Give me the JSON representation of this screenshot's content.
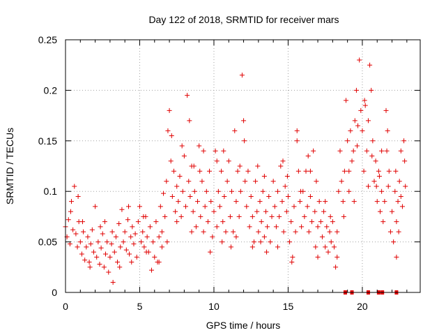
{
  "chart_data": {
    "type": "scatter",
    "title": "Day 122 of 2018, SRMTID for receiver mars",
    "xlabel": "GPS time / hours",
    "ylabel": "SRMTID / TECUs",
    "xlim": [
      0,
      23.9
    ],
    "ylim": [
      0,
      0.25
    ],
    "grid": true,
    "marker": "+",
    "color": "#e00000",
    "x_ticks": [
      0,
      5,
      10,
      15,
      20
    ],
    "y_ticks": [
      0,
      0.05,
      0.1,
      0.15,
      0.2,
      0.25
    ],
    "x_tick_labels": [
      "0",
      "5",
      "10",
      "15",
      "20"
    ],
    "y_tick_labels": [
      "0",
      "0.05",
      "0.1",
      "0.15",
      "0.2",
      "0.25"
    ],
    "series": [
      {
        "name": "SRMTID",
        "points": [
          [
            0.0,
            0.065
          ],
          [
            0.1,
            0.055
          ],
          [
            0.2,
            0.072
          ],
          [
            0.3,
            0.048
          ],
          [
            0.4,
            0.09
          ],
          [
            0.5,
            0.062
          ],
          [
            0.6,
            0.105
          ],
          [
            0.7,
            0.058
          ],
          [
            0.8,
            0.045
          ],
          [
            0.9,
            0.07
          ],
          [
            1.0,
            0.05
          ],
          [
            1.1,
            0.038
          ],
          [
            1.2,
            0.06
          ],
          [
            1.3,
            0.032
          ],
          [
            1.4,
            0.045
          ],
          [
            1.5,
            0.055
          ],
          [
            1.6,
            0.03
          ],
          [
            1.7,
            0.048
          ],
          [
            1.8,
            0.062
          ],
          [
            1.9,
            0.04
          ],
          [
            2.0,
            0.085
          ],
          [
            2.1,
            0.035
          ],
          [
            2.2,
            0.05
          ],
          [
            2.3,
            0.028
          ],
          [
            2.4,
            0.044
          ],
          [
            2.5,
            0.058
          ],
          [
            2.6,
            0.025
          ],
          [
            2.7,
            0.038
          ],
          [
            2.8,
            0.05
          ],
          [
            2.9,
            0.02
          ],
          [
            3.0,
            0.035
          ],
          [
            3.1,
            0.048
          ],
          [
            3.2,
            0.01
          ],
          [
            3.3,
            0.04
          ],
          [
            3.4,
            0.055
          ],
          [
            3.5,
            0.03
          ],
          [
            3.6,
            0.068
          ],
          [
            3.7,
            0.045
          ],
          [
            3.8,
            0.082
          ],
          [
            3.9,
            0.05
          ],
          [
            4.0,
            0.06
          ],
          [
            4.1,
            0.042
          ],
          [
            4.2,
            0.072
          ],
          [
            4.3,
            0.038
          ],
          [
            4.4,
            0.055
          ],
          [
            4.5,
            0.065
          ],
          [
            4.6,
            0.048
          ],
          [
            4.7,
            0.058
          ],
          [
            4.8,
            0.035
          ],
          [
            4.9,
            0.07
          ],
          [
            5.0,
            0.085
          ],
          [
            5.1,
            0.05
          ],
          [
            5.2,
            0.06
          ],
          [
            5.3,
            0.045
          ],
          [
            5.4,
            0.075
          ],
          [
            5.5,
            0.055
          ],
          [
            5.6,
            0.04
          ],
          [
            5.7,
            0.065
          ],
          [
            5.8,
            0.022
          ],
          [
            5.9,
            0.05
          ],
          [
            6.0,
            0.035
          ],
          [
            6.1,
            0.07
          ],
          [
            6.2,
            0.03
          ],
          [
            6.3,
            0.055
          ],
          [
            6.4,
            0.085
          ],
          [
            6.5,
            0.06
          ],
          [
            6.6,
            0.098
          ],
          [
            6.7,
            0.075
          ],
          [
            6.8,
            0.11
          ],
          [
            6.9,
            0.16
          ],
          [
            7.0,
            0.18
          ],
          [
            7.1,
            0.13
          ],
          [
            7.2,
            0.095
          ],
          [
            7.3,
            0.12
          ],
          [
            7.4,
            0.08
          ],
          [
            7.5,
            0.105
          ],
          [
            7.6,
            0.09
          ],
          [
            7.7,
            0.115
          ],
          [
            7.8,
            0.075
          ],
          [
            7.9,
            0.1
          ],
          [
            8.0,
            0.135
          ],
          [
            8.1,
            0.085
          ],
          [
            8.2,
            0.195
          ],
          [
            8.3,
            0.11
          ],
          [
            8.4,
            0.095
          ],
          [
            8.5,
            0.125
          ],
          [
            8.6,
            0.08
          ],
          [
            8.7,
            0.1
          ],
          [
            8.8,
            0.065
          ],
          [
            8.9,
            0.09
          ],
          [
            9.0,
            0.145
          ],
          [
            9.1,
            0.075
          ],
          [
            9.2,
            0.11
          ],
          [
            9.3,
            0.06
          ],
          [
            9.4,
            0.085
          ],
          [
            9.5,
            0.1
          ],
          [
            9.6,
            0.07
          ],
          [
            9.7,
            0.12
          ],
          [
            9.8,
            0.09
          ],
          [
            9.9,
            0.055
          ],
          [
            10.0,
            0.08
          ],
          [
            10.1,
            0.14
          ],
          [
            10.2,
            0.065
          ],
          [
            10.3,
            0.1
          ],
          [
            10.4,
            0.085
          ],
          [
            10.5,
            0.12
          ],
          [
            10.6,
            0.07
          ],
          [
            10.7,
            0.095
          ],
          [
            10.8,
            0.06
          ],
          [
            10.9,
            0.11
          ],
          [
            11.0,
            0.13
          ],
          [
            11.1,
            0.075
          ],
          [
            11.2,
            0.1
          ],
          [
            11.3,
            0.06
          ],
          [
            11.4,
            0.16
          ],
          [
            11.5,
            0.09
          ],
          [
            11.6,
            0.12
          ],
          [
            11.7,
            0.075
          ],
          [
            11.8,
            0.1
          ],
          [
            11.9,
            0.215
          ],
          [
            12.0,
            0.17
          ],
          [
            12.1,
            0.11
          ],
          [
            12.2,
            0.085
          ],
          [
            12.3,
            0.12
          ],
          [
            12.4,
            0.065
          ],
          [
            12.5,
            0.095
          ],
          [
            12.6,
            0.075
          ],
          [
            12.7,
            0.05
          ],
          [
            12.8,
            0.11
          ],
          [
            12.9,
            0.08
          ],
          [
            13.0,
            0.06
          ],
          [
            13.1,
            0.09
          ],
          [
            13.2,
            0.07
          ],
          [
            13.3,
            0.1
          ],
          [
            13.4,
            0.055
          ],
          [
            13.5,
            0.08
          ],
          [
            13.6,
            0.065
          ],
          [
            13.7,
            0.095
          ],
          [
            13.8,
            0.05
          ],
          [
            13.9,
            0.075
          ],
          [
            14.0,
            0.11
          ],
          [
            14.1,
            0.085
          ],
          [
            14.2,
            0.065
          ],
          [
            14.3,
            0.1
          ],
          [
            14.4,
            0.075
          ],
          [
            14.5,
            0.125
          ],
          [
            14.6,
            0.09
          ],
          [
            14.7,
            0.06
          ],
          [
            14.8,
            0.105
          ],
          [
            14.9,
            0.08
          ],
          [
            15.0,
            0.095
          ],
          [
            15.1,
            0.05
          ],
          [
            15.2,
            0.07
          ],
          [
            15.3,
            0.035
          ],
          [
            15.4,
            0.085
          ],
          [
            15.5,
            0.06
          ],
          [
            15.6,
            0.16
          ],
          [
            15.7,
            0.12
          ],
          [
            15.8,
            0.09
          ],
          [
            15.9,
            0.065
          ],
          [
            16.0,
            0.1
          ],
          [
            16.1,
            0.075
          ],
          [
            16.2,
            0.12
          ],
          [
            16.3,
            0.085
          ],
          [
            16.4,
            0.06
          ],
          [
            16.5,
            0.095
          ],
          [
            16.6,
            0.07
          ],
          [
            16.7,
            0.14
          ],
          [
            16.8,
            0.08
          ],
          [
            16.9,
            0.11
          ],
          [
            17.0,
            0.065
          ],
          [
            17.1,
            0.09
          ],
          [
            17.2,
            0.07
          ],
          [
            17.3,
            0.055
          ],
          [
            17.4,
            0.08
          ],
          [
            17.5,
            0.045
          ],
          [
            17.6,
            0.065
          ],
          [
            17.7,
            0.04
          ],
          [
            17.8,
            0.06
          ],
          [
            17.9,
            0.05
          ],
          [
            18.0,
            0.07
          ],
          [
            18.1,
            0.045
          ],
          [
            18.2,
            0.025
          ],
          [
            18.3,
            0.06
          ],
          [
            18.4,
            0.1
          ],
          [
            18.5,
            0.14
          ],
          [
            18.6,
            0.11
          ],
          [
            18.7,
            0.09
          ],
          [
            18.8,
            0.12
          ],
          [
            18.9,
            0.19
          ],
          [
            19.0,
            0.15
          ],
          [
            19.1,
            0.12
          ],
          [
            19.2,
            0.16
          ],
          [
            19.3,
            0.13
          ],
          [
            19.4,
            0.14
          ],
          [
            19.5,
            0.17
          ],
          [
            19.6,
            0.2
          ],
          [
            19.7,
            0.165
          ],
          [
            19.8,
            0.23
          ],
          [
            19.9,
            0.18
          ],
          [
            20.0,
            0.16
          ],
          [
            20.1,
            0.12
          ],
          [
            20.2,
            0.185
          ],
          [
            20.3,
            0.14
          ],
          [
            20.4,
            0.17
          ],
          [
            20.5,
            0.225
          ],
          [
            20.6,
            0.2
          ],
          [
            20.7,
            0.15
          ],
          [
            20.8,
            0.11
          ],
          [
            20.9,
            0.13
          ],
          [
            21.0,
            0.09
          ],
          [
            21.1,
            0.12
          ],
          [
            21.2,
            0.08
          ],
          [
            21.3,
            0.1
          ],
          [
            21.4,
            0.07
          ],
          [
            21.5,
            0.09
          ],
          [
            21.6,
            0.18
          ],
          [
            21.7,
            0.16
          ],
          [
            21.8,
            0.12
          ],
          [
            21.9,
            0.06
          ],
          [
            22.0,
            0.08
          ],
          [
            22.1,
            0.05
          ],
          [
            22.2,
            0.1
          ],
          [
            22.3,
            0.07
          ],
          [
            22.4,
            0.09
          ],
          [
            22.5,
            0.11
          ],
          [
            22.6,
            0.14
          ],
          [
            22.7,
            0.085
          ],
          [
            22.8,
            0.15
          ],
          [
            22.9,
            0.105
          ],
          [
            6.5,
            0.045
          ],
          [
            6.3,
            0.03
          ],
          [
            7.5,
            0.07
          ],
          [
            8.5,
            0.06
          ],
          [
            9.3,
            0.14
          ],
          [
            10.2,
            0.13
          ],
          [
            11.5,
            0.055
          ],
          [
            12.6,
            0.045
          ],
          [
            13.4,
            0.115
          ],
          [
            14.3,
            0.045
          ],
          [
            15.6,
            0.15
          ],
          [
            16.5,
            0.12
          ],
          [
            17.0,
            0.035
          ],
          [
            17.5,
            0.09
          ],
          [
            18.3,
            0.035
          ],
          [
            19.1,
            0.1
          ],
          [
            20.4,
            0.105
          ],
          [
            21.3,
            0.14
          ],
          [
            22.3,
            0.035
          ],
          [
            22.6,
            0.095
          ],
          [
            0.35,
            0.08
          ],
          [
            1.15,
            0.07
          ],
          [
            2.35,
            0.065
          ],
          [
            3.65,
            0.025
          ],
          [
            4.45,
            0.03
          ],
          [
            5.25,
            0.075
          ],
          [
            6.85,
            0.05
          ],
          [
            7.15,
            0.155
          ],
          [
            8.65,
            0.125
          ],
          [
            9.75,
            0.04
          ],
          [
            10.65,
            0.14
          ],
          [
            11.15,
            0.045
          ],
          [
            12.05,
            0.15
          ],
          [
            13.55,
            0.04
          ],
          [
            14.65,
            0.13
          ],
          [
            15.25,
            0.03
          ],
          [
            16.85,
            0.045
          ],
          [
            18.75,
            0.075
          ],
          [
            19.65,
            0.145
          ],
          [
            20.95,
            0.105
          ],
          [
            21.75,
            0.105
          ],
          [
            22.45,
            0.06
          ],
          [
            0.85,
            0.095
          ],
          [
            1.65,
            0.025
          ],
          [
            2.65,
            0.07
          ],
          [
            3.15,
            0.06
          ],
          [
            4.25,
            0.085
          ],
          [
            5.45,
            0.04
          ],
          [
            7.85,
            0.145
          ],
          [
            8.35,
            0.17
          ],
          [
            9.05,
            0.12
          ],
          [
            10.55,
            0.05
          ],
          [
            11.75,
            0.125
          ],
          [
            12.95,
            0.125
          ],
          [
            13.15,
            0.05
          ],
          [
            14.95,
            0.115
          ],
          [
            15.85,
            0.1
          ],
          [
            16.35,
            0.135
          ],
          [
            17.85,
            0.075
          ],
          [
            19.45,
            0.09
          ],
          [
            20.15,
            0.19
          ],
          [
            20.65,
            0.135
          ],
          [
            21.15,
            0.115
          ],
          [
            21.65,
            0.14
          ],
          [
            22.85,
            0.13
          ],
          [
            22.25,
            0.12
          ]
        ]
      }
    ],
    "gap_markers_x": [
      18.85,
      19.3,
      20.4,
      21.1,
      21.35,
      22.3
    ],
    "gap_markers_y": 0
  }
}
